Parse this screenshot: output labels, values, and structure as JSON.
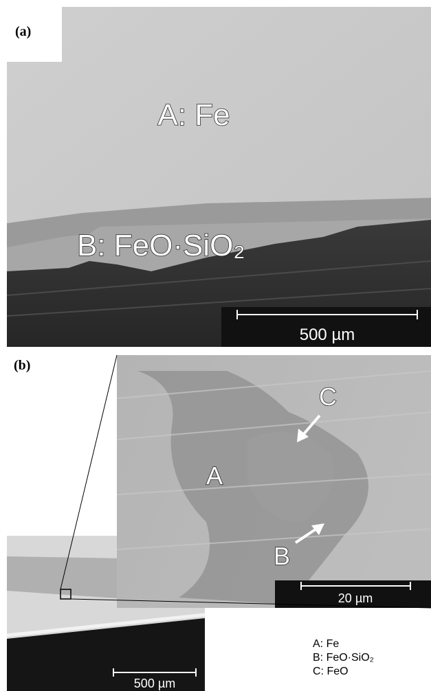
{
  "panel_a": {
    "label": "(a)",
    "phase_a": "A: Fe",
    "phase_b": "B: FeO·SiO₂",
    "scale_bar": "500 µm"
  },
  "panel_b": {
    "label": "(b)",
    "inset_labels": [
      "A",
      "B",
      "C"
    ],
    "inset_scale_bar": "20 µm",
    "overview_scale_bar": "500 µm",
    "legend": [
      "A: Fe",
      "B: FeO·SiO₂",
      "C: FeO"
    ]
  }
}
